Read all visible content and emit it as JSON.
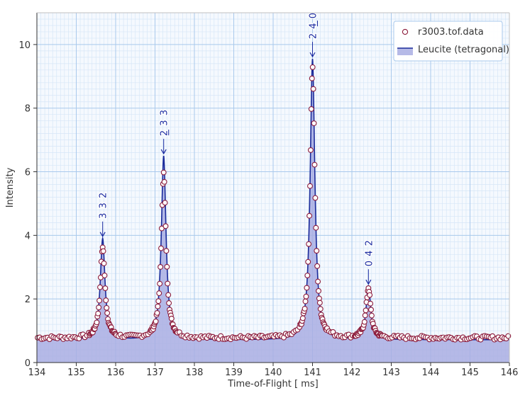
{
  "chart_data": {
    "type": "scatter",
    "xlabel": "Time-of-Flight [ ms]",
    "ylabel": "Intensity",
    "xlim": [
      134,
      146
    ],
    "ylim": [
      0,
      11
    ],
    "xticks": [
      "134",
      "135",
      "136",
      "137",
      "138",
      "139",
      "140",
      "141",
      "142",
      "143",
      "144",
      "145",
      "146"
    ],
    "yticks": [
      "0",
      "2",
      "4",
      "6",
      "8",
      "10"
    ],
    "grid": "minor and major",
    "legend_position": "top-right",
    "colors": {
      "data_marker": "#8b1a3a",
      "fit_line": "#1a2a9a",
      "fill": "#a9aee3",
      "grid_minor": "#d6e6f7",
      "grid_major": "#a9c9ec",
      "legend_border": "#a9c9ec"
    },
    "series": [
      {
        "name": "r3003.tof.data",
        "kind": "markers",
        "background": 0.78,
        "peaks": [
          {
            "center": 135.67,
            "height": 3.65
          },
          {
            "center": 137.22,
            "height": 5.95
          },
          {
            "center": 141.0,
            "height": 9.3
          },
          {
            "center": 142.42,
            "height": 2.35
          }
        ]
      },
      {
        "name": "Leucite (tetragonal)",
        "kind": "line-fill",
        "background": 0.72,
        "peaks": [
          {
            "center": 135.67,
            "height": 3.9
          },
          {
            "center": 137.22,
            "height": 6.5
          },
          {
            "center": 141.0,
            "height": 9.55
          },
          {
            "center": 142.42,
            "height": 2.4
          }
        ]
      }
    ],
    "annotations": [
      {
        "label": "3 3 2",
        "x": 135.67,
        "y": 3.9
      },
      {
        "label": "2 3 3",
        "x": 137.22,
        "y": 6.5,
        "overline_first": true
      },
      {
        "label": "2 4 0",
        "x": 141.0,
        "y": 9.55,
        "overline_second": true
      },
      {
        "label": "0 4 2",
        "x": 142.42,
        "y": 2.4
      }
    ]
  }
}
